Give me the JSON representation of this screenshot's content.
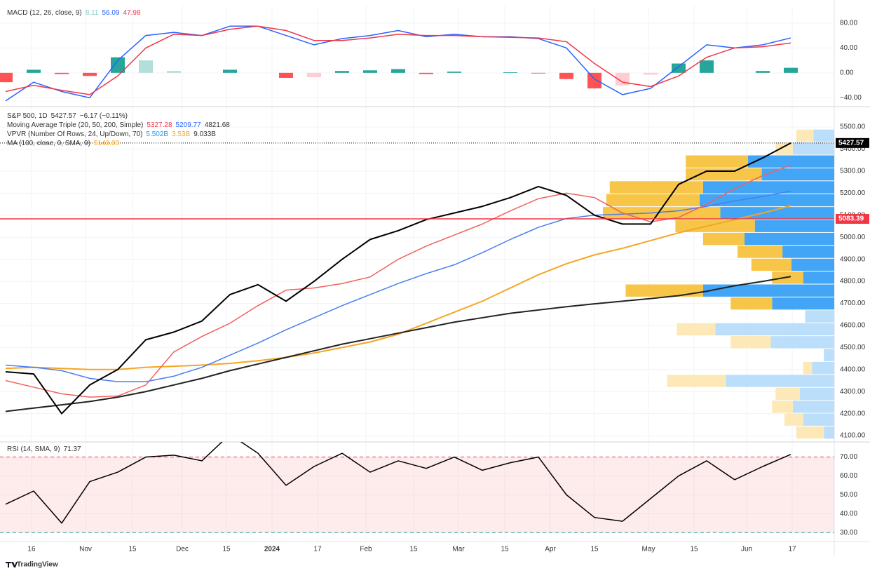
{
  "chart_data": [
    {
      "type": "line",
      "legend": [
        [
          {
            "text": "MACD (12, 26, close, 9)",
            "color": "#333333"
          },
          {
            "text": "8.11",
            "color": "#80cbc4"
          },
          {
            "text": "56.09",
            "color": "#2962ff"
          },
          {
            "text": "47.98",
            "color": "#f23645"
          }
        ]
      ],
      "ylim": [
        -52,
        108
      ],
      "yticks": [
        {
          "value": 80,
          "label": "80.00"
        },
        {
          "value": 40,
          "label": "40.00"
        },
        {
          "value": 0,
          "label": "0.00"
        },
        {
          "value": -40,
          "label": "−40.00"
        }
      ],
      "series": [
        {
          "type": "bar",
          "colors": {
            "up_rising": "#26a69a",
            "up_falling": "#b2dfdb",
            "down_falling": "#ff5252",
            "down_rising": "#ffcdd2"
          },
          "values": [
            -15,
            5,
            -2,
            -5,
            25,
            20,
            3,
            0,
            5,
            0,
            -8,
            -7,
            3,
            4,
            6,
            -2,
            2,
            0,
            1,
            -1,
            -10,
            -25,
            -20,
            -3,
            15,
            20,
            0,
            3,
            8.11
          ]
        },
        {
          "color": "#2962ff",
          "values": [
            -45,
            -15,
            -30,
            -40,
            20,
            60,
            65,
            60,
            75,
            75,
            60,
            45,
            55,
            60,
            68,
            58,
            62,
            58,
            58,
            55,
            40,
            -10,
            -35,
            -25,
            10,
            45,
            40,
            45,
            56.09
          ]
        },
        {
          "color": "#f23645",
          "values": [
            -30,
            -20,
            -28,
            -35,
            -5,
            40,
            62,
            60,
            70,
            75,
            68,
            52,
            52,
            56,
            62,
            60,
            60,
            58,
            57,
            56,
            50,
            15,
            -15,
            -22,
            -5,
            25,
            40,
            42,
            47.98
          ]
        }
      ]
    },
    {
      "type": "line",
      "legend": [
        [
          {
            "text": "S&P 500, 1D",
            "color": "#333333"
          },
          {
            "text": "5427.57",
            "color": "#333333"
          },
          {
            "text": "−6.17 (−0.11%)",
            "color": "#333333"
          }
        ],
        [
          {
            "text": "Moving Average Triple (20, 50, 200, Simple)",
            "color": "#333333"
          },
          {
            "text": "5327.28",
            "color": "#f23645"
          },
          {
            "text": "5209.77",
            "color": "#2962ff"
          },
          {
            "text": "4821.68",
            "color": "#333333"
          }
        ],
        [
          {
            "text": "VPVR (Number Of Rows, 24, Up/Down, 70)",
            "color": "#333333"
          },
          {
            "text": "5.502B",
            "color": "#2196f3"
          },
          {
            "text": "3.53B",
            "color": "#f5a623"
          },
          {
            "text": "9.033B",
            "color": "#333333"
          }
        ],
        [
          {
            "text": "MA (100, close, 0, SMA, 9)",
            "color": "#333333"
          },
          {
            "text": "5143.00",
            "color": "#f5a623"
          }
        ]
      ],
      "ylim": [
        4078,
        5583
      ],
      "yticks": [
        {
          "value": 5500,
          "label": "5500.00"
        },
        {
          "value": 5400,
          "label": "5400.00"
        },
        {
          "value": 5300,
          "label": "5300.00"
        },
        {
          "value": 5200,
          "label": "5200.00"
        },
        {
          "value": 5100,
          "label": "5100.00"
        },
        {
          "value": 5000,
          "label": "5000.00"
        },
        {
          "value": 4900,
          "label": "4900.00"
        },
        {
          "value": 4800,
          "label": "4800.00"
        },
        {
          "value": 4700,
          "label": "4700.00"
        },
        {
          "value": 4600,
          "label": "4600.00"
        },
        {
          "value": 4500,
          "label": "4500.00"
        },
        {
          "value": 4400,
          "label": "4400.00"
        },
        {
          "value": 4300,
          "label": "4300.00"
        },
        {
          "value": 4200,
          "label": "4200.00"
        },
        {
          "value": 4100,
          "label": "4100.00"
        }
      ],
      "volume_profile": {
        "range": [
          4085,
          5490
        ],
        "up_color": "#42a5f5",
        "up_color_outside": "#bbdefb",
        "down_color": "#f7c548",
        "down_color_outside": "#fde9b8",
        "up": [
          72,
          144,
          300,
          252,
          456,
          468,
          396,
          276,
          312,
          180,
          149,
          108,
          456,
          216,
          101,
          413,
          221,
          36,
          77,
          377,
          120,
          144,
          108,
          36
        ],
        "down": [
          60,
          60,
          216,
          264,
          324,
          324,
          408,
          276,
          144,
          156,
          139,
          108,
          269,
          144,
          0,
          134,
          139,
          0,
          31,
          204,
          84,
          72,
          65,
          96
        ],
        "in_value_area": [
          false,
          false,
          true,
          true,
          true,
          true,
          true,
          true,
          true,
          true,
          true,
          true,
          true,
          true,
          false,
          false,
          false,
          false,
          false,
          false,
          false,
          false,
          false,
          false
        ]
      },
      "series": [
        {
          "color": "#f5a623",
          "width": 2,
          "values": [
            4405,
            4410,
            4405,
            4400,
            4400,
            4410,
            4415,
            4420,
            4428,
            4440,
            4455,
            4475,
            4500,
            4525,
            4560,
            4610,
            4660,
            4710,
            4770,
            4830,
            4880,
            4920,
            4950,
            4985,
            5020,
            5050,
            5080,
            5110,
            5143
          ]
        },
        {
          "color": "#222222",
          "width": 2,
          "values": [
            4210,
            4225,
            4240,
            4255,
            4275,
            4300,
            4330,
            4360,
            4395,
            4425,
            4455,
            4485,
            4515,
            4540,
            4565,
            4590,
            4615,
            4635,
            4655,
            4670,
            4685,
            4698,
            4710,
            4722,
            4735,
            4755,
            4780,
            4800,
            4821.68
          ]
        },
        {
          "color": "#4a7ef0",
          "width": 1.5,
          "values": [
            4420,
            4410,
            4395,
            4360,
            4345,
            4345,
            4370,
            4410,
            4465,
            4520,
            4580,
            4635,
            4690,
            4740,
            4790,
            4835,
            4875,
            4930,
            4990,
            5045,
            5085,
            5100,
            5105,
            5110,
            5120,
            5140,
            5165,
            5185,
            5209.77
          ]
        },
        {
          "color": "#f0625d",
          "width": 1.5,
          "values": [
            4350,
            4320,
            4290,
            4275,
            4280,
            4330,
            4480,
            4550,
            4610,
            4690,
            4760,
            4770,
            4790,
            4820,
            4900,
            4960,
            5010,
            5060,
            5120,
            5175,
            5200,
            5180,
            5110,
            5070,
            5090,
            5150,
            5220,
            5280,
            5327.28
          ]
        },
        {
          "color": "#000000",
          "width": 2,
          "values": [
            4390,
            4380,
            4200,
            4330,
            4400,
            4535,
            4570,
            4620,
            4740,
            4785,
            4710,
            4800,
            4900,
            4990,
            5030,
            5080,
            5110,
            5140,
            5180,
            5230,
            5190,
            5100,
            5060,
            5060,
            5240,
            5300,
            5300,
            5360,
            5427.57
          ]
        }
      ],
      "hlines": [
        {
          "value": 5083.39,
          "color": "#f23645",
          "style": "solid"
        },
        {
          "value": 5427.57,
          "color": "#000000",
          "style": "dotted"
        }
      ]
    },
    {
      "type": "line",
      "legend": [
        [
          {
            "text": "RSI (14, SMA, 9)",
            "color": "#333333"
          },
          {
            "text": "71.37",
            "color": "#333333"
          }
        ]
      ],
      "ylim": [
        26,
        78
      ],
      "yticks": [
        {
          "value": 70,
          "label": "70.00"
        },
        {
          "value": 60,
          "label": "60.00"
        },
        {
          "value": 50,
          "label": "50.00"
        },
        {
          "value": 40,
          "label": "40.00"
        },
        {
          "value": 30,
          "label": "30.00"
        }
      ],
      "band": {
        "from": 30,
        "to": 70,
        "color": "rgba(242,54,69,0.10)",
        "upper_color": "#f23645",
        "lower_color": "#26a69a"
      },
      "series": [
        {
          "color": "#000000",
          "width": 1.5,
          "values": [
            45,
            52,
            35,
            57,
            62,
            70,
            71,
            68,
            82,
            72,
            55,
            65,
            72,
            62,
            68,
            64,
            70,
            63,
            67,
            70,
            50,
            38,
            36,
            48,
            60,
            68,
            58,
            65,
            71.37
          ]
        }
      ]
    }
  ],
  "time_axis": {
    "labels": [
      "16",
      "Nov",
      "15",
      "Dec",
      "15",
      "2024",
      "17",
      "Feb",
      "15",
      "Mar",
      "15",
      "Apr",
      "15",
      "May",
      "15",
      "Jun",
      "17"
    ]
  },
  "footer": "TradingView"
}
